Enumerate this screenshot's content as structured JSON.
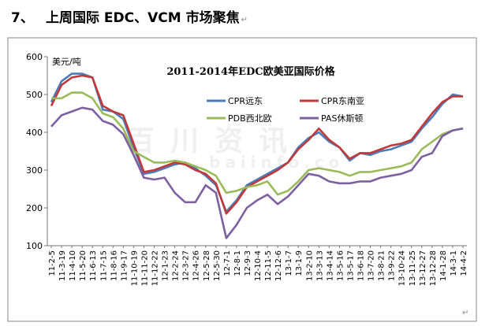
{
  "header": {
    "number": "7、",
    "title": "上周国际 EDC、VCM 市场聚焦",
    "return_mark": "↵"
  },
  "footer_return_mark": "↵",
  "watermark": {
    "line1": "百川资讯",
    "line2": "baiinfo.co"
  },
  "colors": {
    "CPR远东": "#4a7ebb",
    "CPR东南亚": "#c0393b",
    "PDB西北欧": "#9bbb59",
    "PAS休斯顿": "#7d60a0"
  },
  "chart_data": {
    "type": "line",
    "title": "2011-2014年EDC欧美亚国际价格",
    "ylabel": "美元/吨",
    "xlabel": "",
    "ylim": [
      100,
      600
    ],
    "yticks": [
      100,
      200,
      300,
      400,
      500,
      600
    ],
    "grid": false,
    "legend_position": "top-right",
    "categories": [
      "11-2-5",
      "11-3-19",
      "11-4-10",
      "11-5-20",
      "11-6-13",
      "11-7-15",
      "11-8-16",
      "11-9-17",
      "11-10-19",
      "11-11-20",
      "11-12-22",
      "12-1-23",
      "12-2-24",
      "12-3-27",
      "12-4-26",
      "12-5-28",
      "12-5-30",
      "12-7-1",
      "12-8-1",
      "12-9-3",
      "12-10-4",
      "12-11-5",
      "12-12-6",
      "13-1-7",
      "13-1-9",
      "13-2-10",
      "13-3-13",
      "13-4-14",
      "13-5-16",
      "13-5-17",
      "13-6-18",
      "13-7-20",
      "13-8-21",
      "13-9-22",
      "13-10-24",
      "13-11-25",
      "13-12-27",
      "13-12-28",
      "14-1-28",
      "14-3-1",
      "14-4-2"
    ],
    "series": [
      {
        "name": "CPR远东",
        "values": [
          480,
          535,
          555,
          555,
          545,
          460,
          455,
          435,
          360,
          290,
          295,
          305,
          315,
          320,
          305,
          285,
          260,
          190,
          220,
          260,
          275,
          290,
          305,
          320,
          360,
          385,
          400,
          375,
          360,
          325,
          345,
          340,
          350,
          355,
          365,
          375,
          410,
          440,
          475,
          500,
          495
        ]
      },
      {
        "name": "CPR东南亚",
        "values": [
          470,
          525,
          545,
          550,
          545,
          470,
          455,
          445,
          370,
          295,
          300,
          310,
          320,
          315,
          300,
          290,
          265,
          185,
          215,
          255,
          270,
          285,
          300,
          320,
          355,
          380,
          410,
          380,
          360,
          330,
          345,
          345,
          355,
          365,
          370,
          380,
          415,
          450,
          480,
          495,
          495
        ]
      },
      {
        "name": "PDB西北欧",
        "values": [
          490,
          490,
          505,
          505,
          490,
          450,
          440,
          410,
          350,
          335,
          320,
          320,
          325,
          320,
          310,
          300,
          285,
          240,
          245,
          255,
          260,
          270,
          235,
          245,
          270,
          300,
          305,
          300,
          295,
          285,
          295,
          295,
          300,
          305,
          310,
          320,
          355,
          375,
          395,
          405,
          410
        ]
      },
      {
        "name": "PAS休斯顿",
        "values": [
          415,
          445,
          455,
          465,
          460,
          430,
          420,
          395,
          340,
          280,
          275,
          280,
          240,
          215,
          215,
          260,
          240,
          120,
          155,
          200,
          220,
          235,
          210,
          230,
          260,
          290,
          285,
          270,
          265,
          265,
          270,
          270,
          280,
          285,
          290,
          300,
          335,
          345,
          390,
          405,
          410
        ]
      }
    ]
  }
}
